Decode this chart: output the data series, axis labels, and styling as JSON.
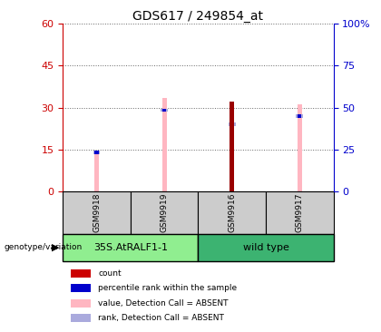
{
  "title": "GDS617 / 249854_at",
  "samples": [
    "GSM9918",
    "GSM9919",
    "GSM9916",
    "GSM9917"
  ],
  "groups": [
    {
      "label": "35S.AtRALF1-1",
      "samples": [
        "GSM9918",
        "GSM9919"
      ],
      "color": "#90ee90"
    },
    {
      "label": "wild type",
      "samples": [
        "GSM9916",
        "GSM9917"
      ],
      "color": "#3cb371"
    }
  ],
  "pink_bar_values": [
    14.5,
    33.5,
    32.0,
    31.0
  ],
  "blue_bar_values": [
    14.0,
    29.0,
    24.0,
    27.0
  ],
  "red_bar_values": [
    0.0,
    0.0,
    32.0,
    0.0
  ],
  "left_ylim": [
    0,
    60
  ],
  "left_yticks": [
    0,
    15,
    30,
    45,
    60
  ],
  "right_ylim": [
    0,
    100
  ],
  "right_yticks": [
    0,
    25,
    50,
    75,
    100
  ],
  "right_yticklabels": [
    "0",
    "25",
    "50",
    "75",
    "100%"
  ],
  "left_axis_color": "#cc0000",
  "right_axis_color": "#0000cc",
  "pink_color": "#ffb6c1",
  "blue_marker_color": "#0000cc",
  "red_bar_color": "#990000",
  "light_blue_color": "#aaaadd",
  "legend_items": [
    {
      "label": "count",
      "color": "#cc0000"
    },
    {
      "label": "percentile rank within the sample",
      "color": "#0000cc"
    },
    {
      "label": "value, Detection Call = ABSENT",
      "color": "#ffb6c1"
    },
    {
      "label": "rank, Detection Call = ABSENT",
      "color": "#aaaadd"
    }
  ],
  "genotype_label": "genotype/variation",
  "sample_bg_color": "#cccccc",
  "grid_linestyle": ":"
}
